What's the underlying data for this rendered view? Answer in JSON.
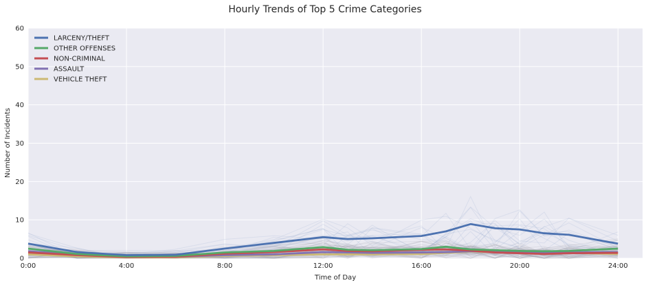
{
  "chart_data": {
    "type": "line",
    "title": "Hourly Trends of Top 5 Crime Categories",
    "xlabel": "Time of Day",
    "ylabel": "Number of Incidents",
    "xlim": [
      0,
      25
    ],
    "ylim": [
      0,
      60
    ],
    "x_ticks": [
      0,
      4,
      8,
      12,
      16,
      20,
      24
    ],
    "x_tick_labels": [
      "0:00",
      "4:00",
      "8:00",
      "12:00",
      "16:00",
      "20:00",
      "24:00"
    ],
    "y_ticks": [
      0,
      10,
      20,
      30,
      40,
      50,
      60
    ],
    "y_tick_labels": [
      "0",
      "10",
      "20",
      "30",
      "40",
      "50",
      "60"
    ],
    "grid": true,
    "legend_position": "top-left",
    "x": [
      0,
      2,
      4,
      6,
      8,
      10,
      12,
      13,
      14,
      16,
      17,
      18,
      19,
      20,
      21,
      22,
      24
    ],
    "series": [
      {
        "name": "LARCENY/THEFT",
        "color": "#4c72b0",
        "values": [
          3.8,
          1.6,
          0.8,
          0.9,
          2.5,
          4.0,
          5.5,
          5.0,
          5.2,
          5.8,
          7.0,
          8.9,
          7.8,
          7.5,
          6.5,
          6.1,
          3.8
        ]
      },
      {
        "name": "OTHER OFFENSES",
        "color": "#55a868",
        "values": [
          2.5,
          1.1,
          0.5,
          0.6,
          1.5,
          1.9,
          2.9,
          2.2,
          2.1,
          2.4,
          3.0,
          2.3,
          2.1,
          1.9,
          1.8,
          1.9,
          2.5
        ]
      },
      {
        "name": "NON-CRIMINAL",
        "color": "#c44e52",
        "values": [
          1.5,
          0.8,
          0.3,
          0.4,
          1.2,
          1.6,
          2.3,
          1.9,
          1.8,
          2.2,
          2.3,
          2.0,
          1.5,
          1.3,
          1.1,
          1.3,
          1.4
        ]
      },
      {
        "name": "ASSAULT",
        "color": "#8172b2",
        "values": [
          1.8,
          1.0,
          0.5,
          0.4,
          0.8,
          1.0,
          1.6,
          1.5,
          1.4,
          1.5,
          1.6,
          1.8,
          1.7,
          1.6,
          1.5,
          1.5,
          1.6
        ]
      },
      {
        "name": "VEHICLE THEFT",
        "color": "#ccb974",
        "values": [
          1.0,
          0.5,
          0.2,
          0.2,
          0.6,
          0.8,
          1.0,
          1.0,
          1.0,
          1.1,
          1.4,
          1.7,
          1.6,
          1.8,
          1.5,
          1.4,
          1.1
        ]
      }
    ],
    "background_color": "#eaeaf2",
    "grid_color": "#ffffff"
  }
}
